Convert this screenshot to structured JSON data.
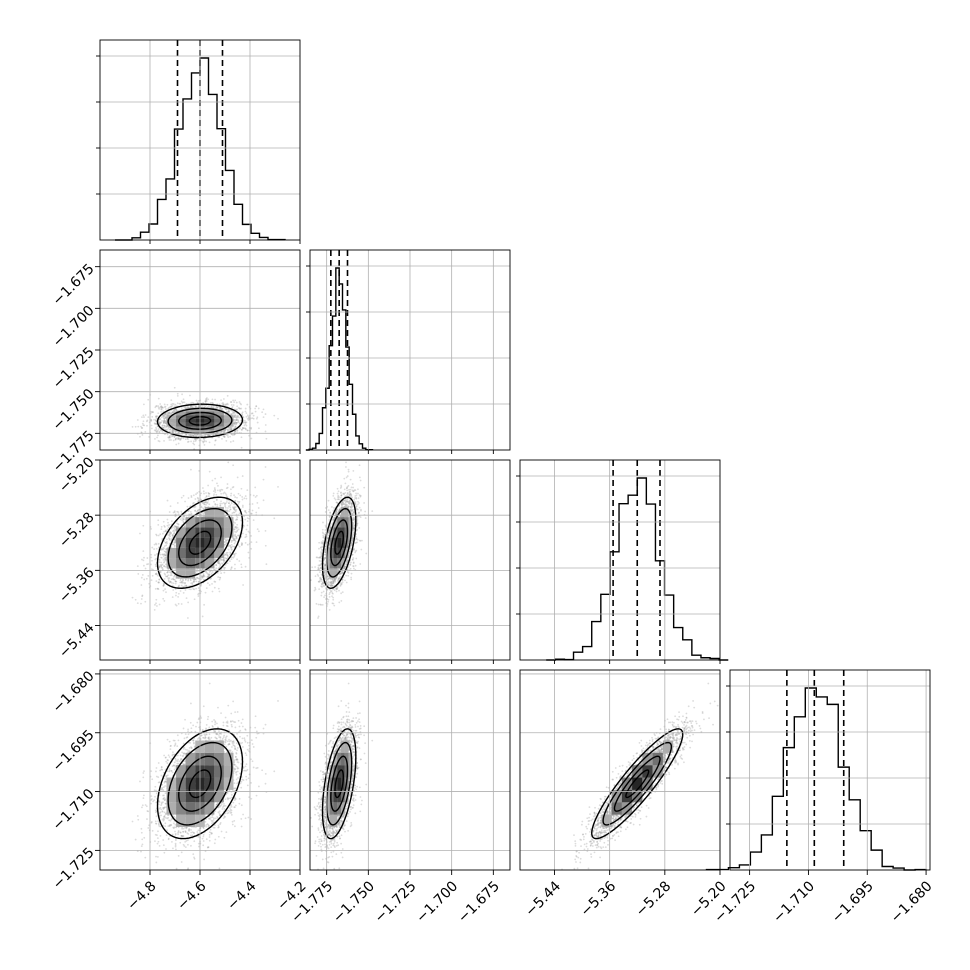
{
  "chart_data": {
    "type": "corner",
    "parameters": [
      {
        "xlim": [
          -5.0,
          -4.2
        ],
        "xticks": [
          -4.8,
          -4.6,
          -4.4,
          -4.2
        ],
        "xtick_labels": [
          "−4.8",
          "−4.6",
          "−4.4",
          "−4.2"
        ],
        "yticks": [],
        "ytick_labels": [],
        "quantiles": [
          -4.69,
          -4.6,
          -4.51
        ],
        "mean": -4.6,
        "sigma": 0.085
      },
      {
        "xlim": [
          -1.785,
          -1.665
        ],
        "xticks": [
          -1.775,
          -1.75,
          -1.725,
          -1.7,
          -1.675
        ],
        "xtick_labels": [
          "−1.775",
          "−1.750",
          "−1.725",
          "−1.700",
          "−1.675"
        ],
        "yticks": [
          -1.675,
          -1.7,
          -1.725,
          -1.75,
          -1.775
        ],
        "ytick_labels": [
          "−1.675",
          "−1.700",
          "−1.725",
          "−1.750",
          "−1.775"
        ],
        "quantiles": [
          -1.7725,
          -1.7675,
          -1.7625
        ],
        "mean": -1.7675,
        "sigma": 0.005
      },
      {
        "xlim": [
          -5.49,
          -5.2
        ],
        "xticks": [
          -5.44,
          -5.36,
          -5.28,
          -5.2
        ],
        "xtick_labels": [
          "−5.44",
          "−5.36",
          "−5.28",
          "−5.20"
        ],
        "yticks": [
          -5.2,
          -5.28,
          -5.36,
          -5.44
        ],
        "ytick_labels": [
          "−5.20",
          "−5.28",
          "−5.36",
          "−5.44"
        ],
        "quantiles": [
          -5.355,
          -5.32,
          -5.287
        ],
        "mean": -5.32,
        "sigma": 0.033
      },
      {
        "xlim": [
          -1.73,
          -1.679
        ],
        "xticks": [
          -1.725,
          -1.71,
          -1.695,
          -1.68
        ],
        "xtick_labels": [
          "−1.725",
          "−1.710",
          "−1.695",
          "−1.680"
        ],
        "yticks": [
          -1.68,
          -1.695,
          -1.71,
          -1.725
        ],
        "ytick_labels": [
          "−1.680",
          "−1.695",
          "−1.710",
          "−1.725"
        ],
        "quantiles": [
          -1.7155,
          -1.7085,
          -1.701
        ],
        "mean": -1.708,
        "sigma": 0.007
      }
    ],
    "correlations": [
      [
        1.0,
        0.05,
        0.45,
        0.4
      ],
      [
        0.05,
        1.0,
        0.5,
        0.5
      ],
      [
        0.45,
        0.5,
        1.0,
        0.9
      ],
      [
        0.4,
        0.5,
        0.9,
        1.0
      ]
    ],
    "grid": true,
    "colors": {
      "points": "#9a9a9a",
      "lines": "#000000",
      "grid": "#b0b0b0"
    }
  }
}
